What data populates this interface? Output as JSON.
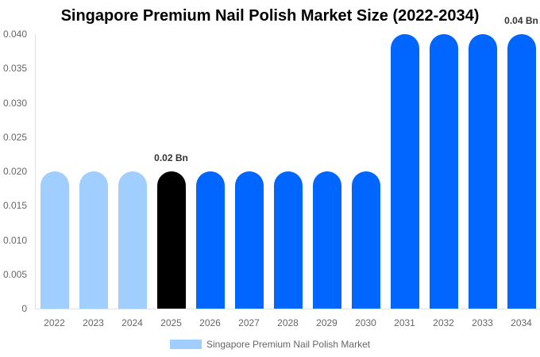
{
  "chart_data": {
    "type": "bar",
    "title": "Singapore Premium Nail Polish Market Size (2022-2034)",
    "xlabel": "",
    "ylabel": "",
    "ylim": [
      0,
      0.04
    ],
    "yticks": [
      "0",
      "0.005",
      "0.010",
      "0.015",
      "0.020",
      "0.025",
      "0.030",
      "0.035",
      "0.040"
    ],
    "categories": [
      "2022",
      "2023",
      "2024",
      "2025",
      "2026",
      "2027",
      "2028",
      "2029",
      "2030",
      "2031",
      "2032",
      "2033",
      "2034"
    ],
    "series": [
      {
        "name": "Singapore Premium Nail Polish Market",
        "values": [
          0.02,
          0.02,
          0.02,
          0.02,
          0.02,
          0.02,
          0.02,
          0.02,
          0.02,
          0.04,
          0.04,
          0.04,
          0.04
        ]
      }
    ],
    "bar_colors": [
      "#a0cfff",
      "#a0cfff",
      "#a0cfff",
      "#000000",
      "#0066ff",
      "#0066ff",
      "#0066ff",
      "#0066ff",
      "#0066ff",
      "#0066ff",
      "#0066ff",
      "#0066ff",
      "#0066ff"
    ],
    "annotations": [
      {
        "index": 3,
        "text": "0.02 Bn"
      },
      {
        "index": 12,
        "text": "0.04 Bn"
      }
    ],
    "grid": false,
    "legend_position": "bottom"
  },
  "legend": {
    "label": "Singapore Premium Nail Polish Market",
    "color": "#a0cfff"
  }
}
